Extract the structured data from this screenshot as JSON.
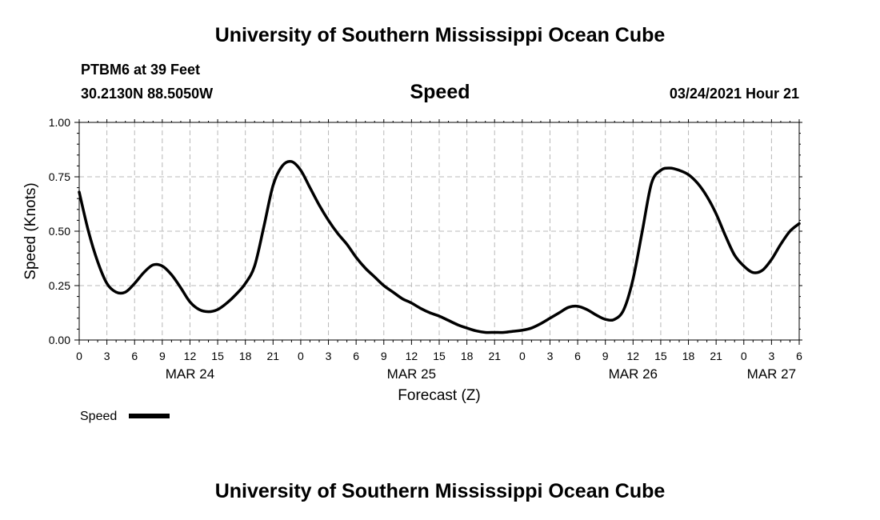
{
  "header": {
    "title": "University of Southern Mississippi Ocean Cube",
    "station": "PTBM6 at 39 Feet",
    "coords": "30.2130N 88.5050W",
    "subtitle": "Speed",
    "timestamp": "03/24/2021 Hour 21"
  },
  "footer": {
    "title": "University of Southern Mississippi Ocean Cube"
  },
  "chart_data": {
    "type": "line",
    "title": "Speed",
    "xlabel": "Forecast (Z)",
    "ylabel": "Speed (Knots)",
    "xlim": [
      0,
      78
    ],
    "ylim": [
      0,
      1
    ],
    "grid": true,
    "y_ticks": [
      0,
      0.25,
      0.5,
      0.75,
      1.0
    ],
    "y_tick_labels": [
      "0.00",
      "0.25",
      "0.50",
      "0.75",
      "1.00"
    ],
    "x_ticks": [
      0,
      3,
      6,
      9,
      12,
      15,
      18,
      21,
      24,
      27,
      30,
      33,
      36,
      39,
      42,
      45,
      48,
      51,
      54,
      57,
      60,
      63,
      66,
      69,
      72,
      75,
      78
    ],
    "x_tick_labels": [
      "0",
      "3",
      "6",
      "9",
      "12",
      "15",
      "18",
      "21",
      "0",
      "3",
      "6",
      "9",
      "12",
      "15",
      "18",
      "21",
      "0",
      "3",
      "6",
      "9",
      "12",
      "15",
      "18",
      "21",
      "0",
      "3",
      "6"
    ],
    "date_labels": [
      {
        "hour": 12,
        "label": "MAR 24"
      },
      {
        "hour": 36,
        "label": "MAR 25"
      },
      {
        "hour": 60,
        "label": "MAR 26"
      },
      {
        "hour": 75,
        "label": "MAR 27"
      }
    ],
    "legend": {
      "label": "Speed",
      "color": "#000000"
    },
    "series": [
      {
        "name": "Speed",
        "color": "#000000",
        "x": [
          0,
          1,
          2,
          3,
          4,
          5,
          6,
          7,
          8,
          9,
          10,
          11,
          12,
          13,
          14,
          15,
          16,
          17,
          18,
          19,
          20,
          21,
          22,
          23,
          24,
          25,
          26,
          27,
          28,
          29,
          30,
          31,
          32,
          33,
          34,
          35,
          36,
          37,
          38,
          39,
          40,
          41,
          42,
          43,
          44,
          45,
          46,
          47,
          48,
          49,
          50,
          51,
          52,
          53,
          54,
          55,
          56,
          57,
          58,
          59,
          60,
          61,
          62,
          63,
          64,
          65,
          66,
          67,
          68,
          69,
          70,
          71,
          72,
          73,
          74,
          75,
          76,
          77,
          78
        ],
        "y": [
          0.68,
          0.5,
          0.36,
          0.26,
          0.22,
          0.22,
          0.26,
          0.31,
          0.345,
          0.34,
          0.3,
          0.24,
          0.175,
          0.14,
          0.13,
          0.14,
          0.17,
          0.21,
          0.26,
          0.34,
          0.52,
          0.71,
          0.8,
          0.82,
          0.78,
          0.7,
          0.62,
          0.55,
          0.49,
          0.44,
          0.38,
          0.33,
          0.29,
          0.25,
          0.22,
          0.19,
          0.17,
          0.145,
          0.125,
          0.11,
          0.09,
          0.07,
          0.055,
          0.042,
          0.035,
          0.035,
          0.035,
          0.04,
          0.045,
          0.055,
          0.075,
          0.1,
          0.125,
          0.15,
          0.155,
          0.14,
          0.115,
          0.095,
          0.095,
          0.14,
          0.28,
          0.5,
          0.72,
          0.78,
          0.79,
          0.78,
          0.76,
          0.72,
          0.66,
          0.58,
          0.48,
          0.39,
          0.34,
          0.31,
          0.32,
          0.37,
          0.44,
          0.5,
          0.535
        ]
      }
    ]
  }
}
